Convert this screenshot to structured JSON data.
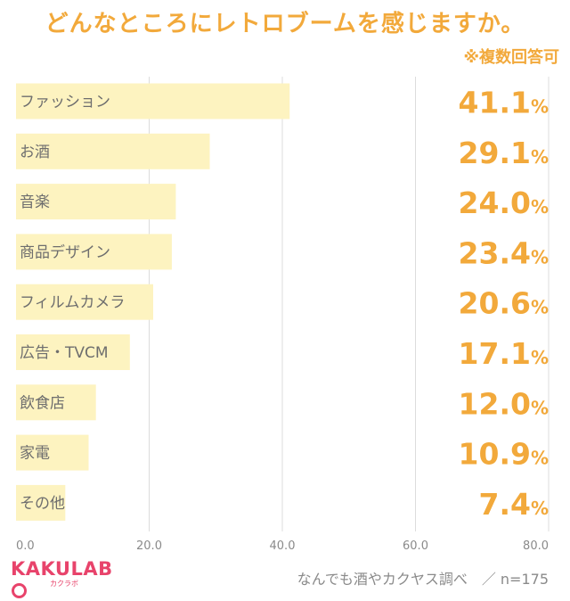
{
  "chart_data": {
    "type": "bar",
    "orientation": "horizontal",
    "title": "どんなところにレトロブームを感じますか。",
    "subtitle": "※複数回答可",
    "categories": [
      "ファッション",
      "お酒",
      "音楽",
      "商品デザイン",
      "フィルムカメラ",
      "広告・TVCM",
      "飲食店",
      "家電",
      "その他"
    ],
    "values": [
      41.1,
      29.1,
      24.0,
      23.4,
      20.6,
      17.1,
      12.0,
      10.9,
      7.4
    ],
    "value_labels": [
      "41.1",
      "29.1",
      "24.0",
      "23.4",
      "20.6",
      "17.1",
      "12.0",
      "10.9",
      "7.4"
    ],
    "value_unit": "%",
    "xlim": [
      0,
      80
    ],
    "xticks": [
      0,
      20,
      40,
      60,
      80
    ],
    "xtick_labels": [
      "0.0",
      "20.0",
      "40.0",
      "60.0",
      "80.0"
    ],
    "grid": true,
    "colors": {
      "bar": "#fdf3c0",
      "accent": "#f2a93b",
      "grid": "#dcdcdc",
      "label": "#6e6e6e"
    }
  },
  "logo": {
    "main": "KAKULAB",
    "sub": "カクラボ",
    "color": "#e8436b"
  },
  "source": "なんでも酒やカクヤス調べ　／ n=175"
}
